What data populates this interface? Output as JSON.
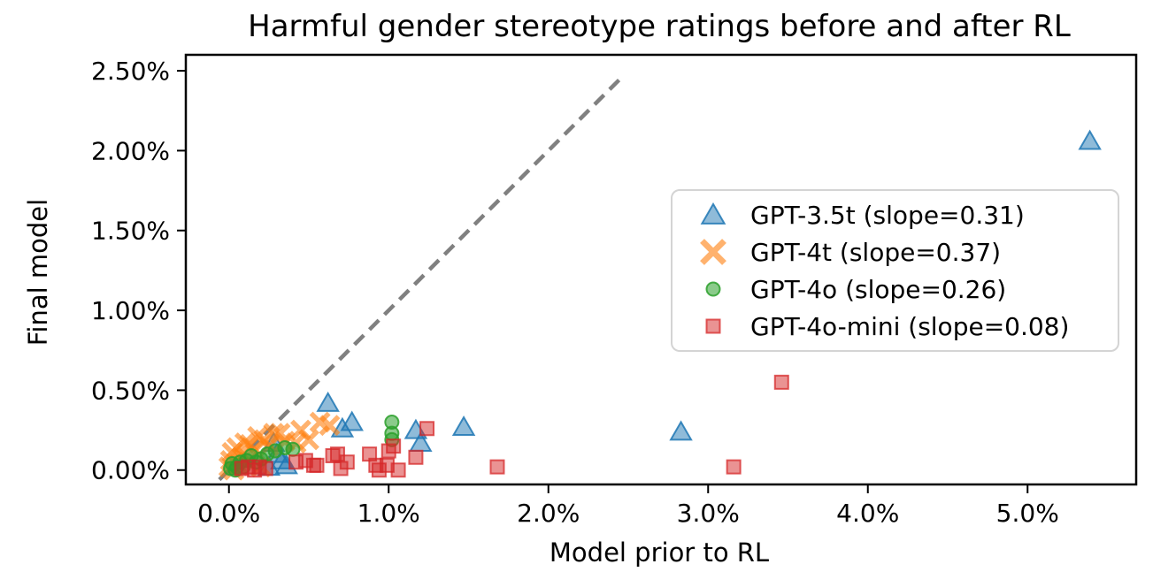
{
  "chart_data": {
    "type": "scatter",
    "title": "Harmful gender stereotype ratings before and after RL",
    "xlabel": "Model prior to RL",
    "ylabel": "Final model",
    "x_unit": "percent",
    "y_unit": "percent",
    "xlim": [
      -0.27,
      5.68
    ],
    "ylim": [
      -0.09,
      2.6
    ],
    "x_ticks": [
      0,
      1,
      2,
      3,
      4,
      5
    ],
    "x_tick_labels": [
      "0.0%",
      "1.0%",
      "2.0%",
      "3.0%",
      "4.0%",
      "5.0%"
    ],
    "y_ticks": [
      0,
      0.5,
      1,
      1.5,
      2,
      2.5
    ],
    "y_tick_labels": [
      "0.00%",
      "0.50%",
      "1.00%",
      "1.50%",
      "2.00%",
      "2.50%"
    ],
    "grid": false,
    "legend_position": "center-right-inside",
    "identity_line": {
      "style": "dashed",
      "color": "#808080",
      "from": [
        -0.06,
        -0.06
      ],
      "to": [
        2.46,
        2.46
      ]
    },
    "series": [
      {
        "name": "GPT-3.5t (slope=0.31)",
        "slope": 0.31,
        "marker": "triangle",
        "color": "#1f77b4",
        "points": [
          [
            0.25,
            0.02
          ],
          [
            0.28,
            0.17
          ],
          [
            0.3,
            0.1
          ],
          [
            0.33,
            0.06
          ],
          [
            0.36,
            0.03
          ],
          [
            0.62,
            0.42
          ],
          [
            0.71,
            0.26
          ],
          [
            0.77,
            0.3
          ],
          [
            1.17,
            0.25
          ],
          [
            1.2,
            0.17
          ],
          [
            1.47,
            0.27
          ],
          [
            2.83,
            0.24
          ],
          [
            5.39,
            2.06
          ]
        ]
      },
      {
        "name": "GPT-4t (slope=0.37)",
        "slope": 0.37,
        "marker": "x",
        "color": "#ff7f0e",
        "points": [
          [
            0.0,
            0.02
          ],
          [
            0.01,
            0.06
          ],
          [
            0.02,
            0.11
          ],
          [
            0.03,
            0.0
          ],
          [
            0.05,
            0.14
          ],
          [
            0.06,
            0.03
          ],
          [
            0.08,
            0.08
          ],
          [
            0.1,
            0.17
          ],
          [
            0.12,
            0.05
          ],
          [
            0.13,
            0.16
          ],
          [
            0.16,
            0.12
          ],
          [
            0.18,
            0.21
          ],
          [
            0.2,
            0.02
          ],
          [
            0.22,
            0.19
          ],
          [
            0.25,
            0.15
          ],
          [
            0.28,
            0.23
          ],
          [
            0.32,
            0.23
          ],
          [
            0.35,
            0.18
          ],
          [
            0.42,
            0.17
          ],
          [
            0.45,
            0.25
          ],
          [
            0.5,
            0.19
          ],
          [
            0.57,
            0.3
          ],
          [
            0.63,
            0.28
          ]
        ]
      },
      {
        "name": "GPT-4o (slope=0.26)",
        "slope": 0.26,
        "marker": "circle",
        "color": "#2ca02c",
        "points": [
          [
            0.01,
            0.01
          ],
          [
            0.02,
            0.04
          ],
          [
            0.04,
            0.0
          ],
          [
            0.05,
            0.02
          ],
          [
            0.07,
            0.05
          ],
          [
            0.09,
            0.02
          ],
          [
            0.11,
            0.06
          ],
          [
            0.14,
            0.09
          ],
          [
            0.17,
            0.05
          ],
          [
            0.2,
            0.07
          ],
          [
            0.24,
            0.1
          ],
          [
            0.29,
            0.12
          ],
          [
            0.35,
            0.14
          ],
          [
            0.4,
            0.13
          ],
          [
            1.02,
            0.3
          ],
          [
            1.02,
            0.23
          ],
          [
            1.02,
            0.19
          ]
        ]
      },
      {
        "name": "GPT-4o-mini (slope=0.08)",
        "slope": 0.08,
        "marker": "square",
        "color": "#d62728",
        "points": [
          [
            0.08,
            0.01
          ],
          [
            0.12,
            0.02
          ],
          [
            0.16,
            0.0
          ],
          [
            0.19,
            0.02
          ],
          [
            0.23,
            0.01
          ],
          [
            0.42,
            0.05
          ],
          [
            0.48,
            0.06
          ],
          [
            0.53,
            0.03
          ],
          [
            0.55,
            0.03
          ],
          [
            0.65,
            0.09
          ],
          [
            0.68,
            0.1
          ],
          [
            0.7,
            0.01
          ],
          [
            0.74,
            0.05
          ],
          [
            0.88,
            0.1
          ],
          [
            0.92,
            0.03
          ],
          [
            0.94,
            0.0
          ],
          [
            0.99,
            0.03
          ],
          [
            1.0,
            0.12
          ],
          [
            1.03,
            0.15
          ],
          [
            1.06,
            0.0
          ],
          [
            1.17,
            0.08
          ],
          [
            1.24,
            0.26
          ],
          [
            1.68,
            0.02
          ],
          [
            3.16,
            0.02
          ],
          [
            3.46,
            0.55
          ]
        ]
      }
    ]
  }
}
